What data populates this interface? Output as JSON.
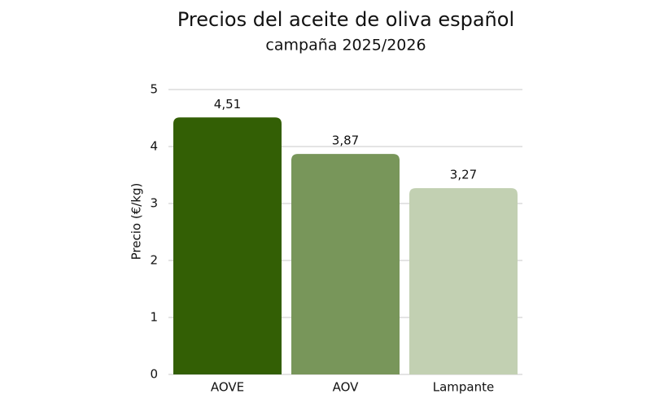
{
  "chart_data": {
    "type": "bar",
    "title": "Precios del aceite de oliva español",
    "subtitle": "campaña 2025/2026",
    "y_label": "Precio (€/kg)",
    "categories": [
      "AOVE",
      "AOV",
      "Lampante"
    ],
    "values": [
      4.51,
      3.87,
      3.27
    ],
    "value_labels": [
      "4,51",
      "3,87",
      "3,27"
    ],
    "colors": [
      "#335f05",
      "#78965a",
      "#c2d0b2"
    ],
    "ylim": [
      0,
      5
    ],
    "yticks": [
      0,
      1,
      2,
      3,
      4,
      5
    ],
    "grid": true
  }
}
